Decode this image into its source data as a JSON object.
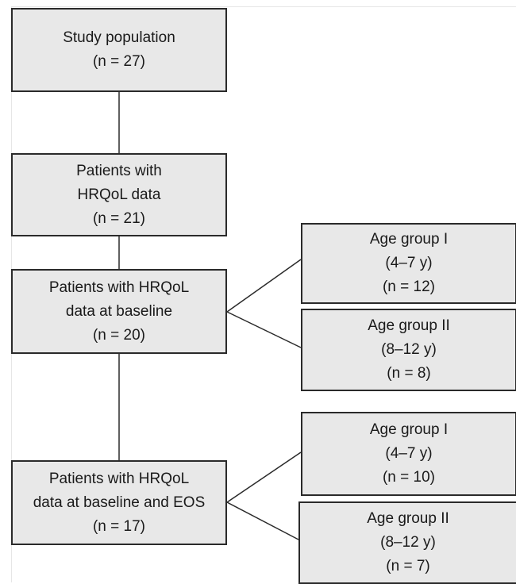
{
  "nodes": {
    "study_population": {
      "lines": [
        "Study population",
        "(n = 27)"
      ]
    },
    "patients_hrqol": {
      "lines": [
        "Patients with",
        "HRQoL data",
        "(n = 21)"
      ]
    },
    "patients_baseline": {
      "lines": [
        "Patients with HRQoL",
        "data at baseline",
        "(n = 20)"
      ]
    },
    "patients_baseline_eos": {
      "lines": [
        "Patients with HRQoL",
        "data at baseline and EOS",
        "(n = 17)"
      ]
    },
    "baseline_age_group_1": {
      "lines": [
        "Age group I",
        "(4–7 y)",
        "(n = 12)"
      ]
    },
    "baseline_age_group_2": {
      "lines": [
        "Age group II",
        "(8–12 y)",
        "(n = 8)"
      ]
    },
    "eos_age_group_1": {
      "lines": [
        "Age group I",
        "(4–7 y)",
        "(n = 10)"
      ]
    },
    "eos_age_group_2": {
      "lines": [
        "Age group II",
        "(8–12 y)",
        "(n = 7)"
      ]
    }
  },
  "colors": {
    "box_fill": "#e8e8e8",
    "box_border": "#2a2a2a",
    "connector": "#2a2a2a",
    "text": "#1a1a1a"
  }
}
